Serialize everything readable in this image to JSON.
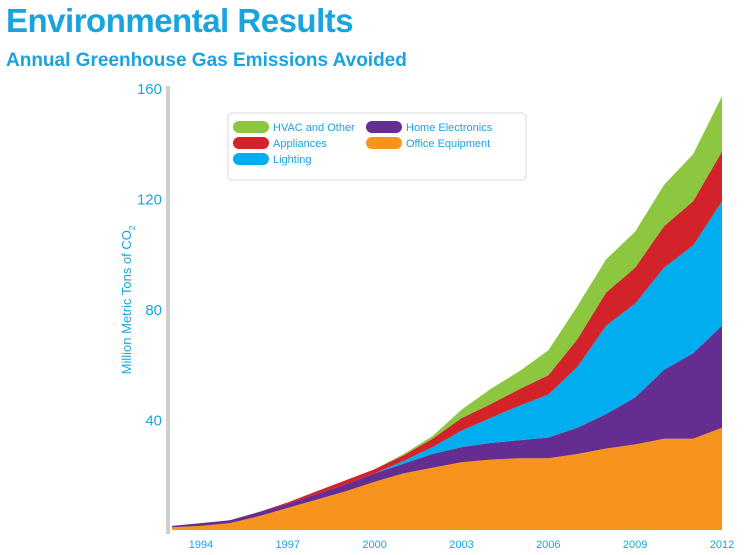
{
  "header": {
    "title": "Environmental Results",
    "subtitle": "Annual Greenhouse Gas Emissions Avoided"
  },
  "chart_data": {
    "type": "area",
    "stacked": true,
    "title": "Environmental Results",
    "subtitle": "Annual Greenhouse Gas Emissions Avoided",
    "xlabel": "",
    "ylabel": "Million Metric Tons of CO",
    "ylabel_subscript": "2",
    "ylim": [
      0,
      160
    ],
    "yticks": [
      40,
      80,
      120,
      160
    ],
    "xlim": [
      1993,
      2012
    ],
    "xticks": [
      1994,
      1997,
      2000,
      2003,
      2006,
      2009,
      2012
    ],
    "grid": false,
    "legend_position": "top-left",
    "x": [
      1993,
      1994,
      1995,
      1996,
      1997,
      1998,
      1999,
      2000,
      2001,
      2002,
      2003,
      2004,
      2005,
      2006,
      2007,
      2008,
      2009,
      2010,
      2011,
      2012
    ],
    "series": [
      {
        "name": "Office Equipment",
        "color": "#f7941d",
        "values": [
          1,
          1.5,
          2.5,
          5,
          8,
          11,
          14,
          17.5,
          20.5,
          22.5,
          24.5,
          25.5,
          26,
          26,
          27.5,
          29.5,
          31,
          33,
          33,
          37
        ]
      },
      {
        "name": "Home Electronics",
        "color": "#662d91",
        "values": [
          0.5,
          1,
          1,
          1.5,
          1.5,
          2,
          2.5,
          3,
          3.5,
          5,
          5.5,
          6,
          6.5,
          7.5,
          9.5,
          12.5,
          17,
          25,
          31,
          37
        ]
      },
      {
        "name": "Lighting",
        "color": "#00aeef",
        "values": [
          0,
          0,
          0,
          0,
          0,
          0,
          0,
          0,
          1,
          2.5,
          6,
          9,
          12.5,
          15.5,
          22,
          32,
          34,
          37,
          39,
          45
        ]
      },
      {
        "name": "Appliances",
        "color": "#d2232a",
        "values": [
          0,
          0,
          0,
          0,
          0.5,
          1,
          1.5,
          1.5,
          2,
          3,
          4.5,
          5,
          6,
          7,
          10,
          12,
          13,
          15,
          16,
          18
        ]
      },
      {
        "name": "HVAC and Other",
        "color": "#8dc63f",
        "values": [
          0,
          0,
          0,
          0,
          0,
          0,
          0,
          0,
          0.5,
          1,
          3,
          5.5,
          6.5,
          9,
          12,
          12,
          13,
          15,
          17,
          20
        ]
      }
    ]
  }
}
